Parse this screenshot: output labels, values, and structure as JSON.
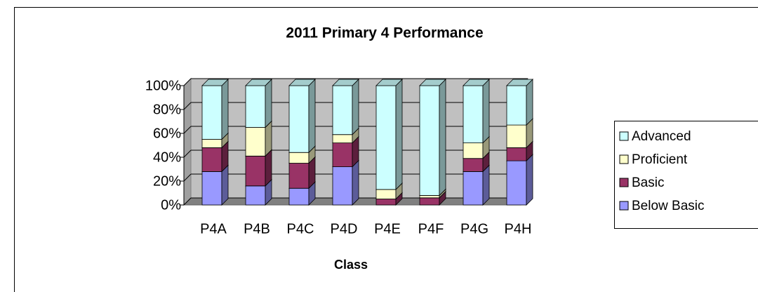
{
  "chart_data": {
    "type": "stacked_bar_3d",
    "title": "2011 Primary 4 Performance",
    "x_label": "Class",
    "categories": [
      "P4A",
      "P4B",
      "P4C",
      "P4D",
      "P4E",
      "P4F",
      "P4G",
      "P4H"
    ],
    "series": [
      {
        "name": "Below Basic",
        "color": "#9999ff",
        "values": [
          28,
          16,
          14,
          32,
          0,
          0,
          28,
          37
        ]
      },
      {
        "name": "Basic",
        "color": "#993366",
        "values": [
          20,
          25,
          21,
          20,
          5,
          6,
          11,
          11
        ]
      },
      {
        "name": "Proficient",
        "color": "#ffffcc",
        "values": [
          7,
          24,
          9,
          7,
          8,
          2,
          13,
          19
        ]
      },
      {
        "name": "Advanced",
        "color": "#ccffff",
        "values": [
          45,
          35,
          56,
          41,
          87,
          92,
          48,
          33
        ]
      }
    ],
    "ylim": [
      0,
      100
    ],
    "yticks": [
      {
        "value": 0,
        "label": "0%"
      },
      {
        "value": 20,
        "label": "20%"
      },
      {
        "value": 40,
        "label": "40%"
      },
      {
        "value": 60,
        "label": "60%"
      },
      {
        "value": 80,
        "label": "80%"
      },
      {
        "value": 100,
        "label": "100%"
      }
    ],
    "grid": true,
    "legend": "right"
  }
}
